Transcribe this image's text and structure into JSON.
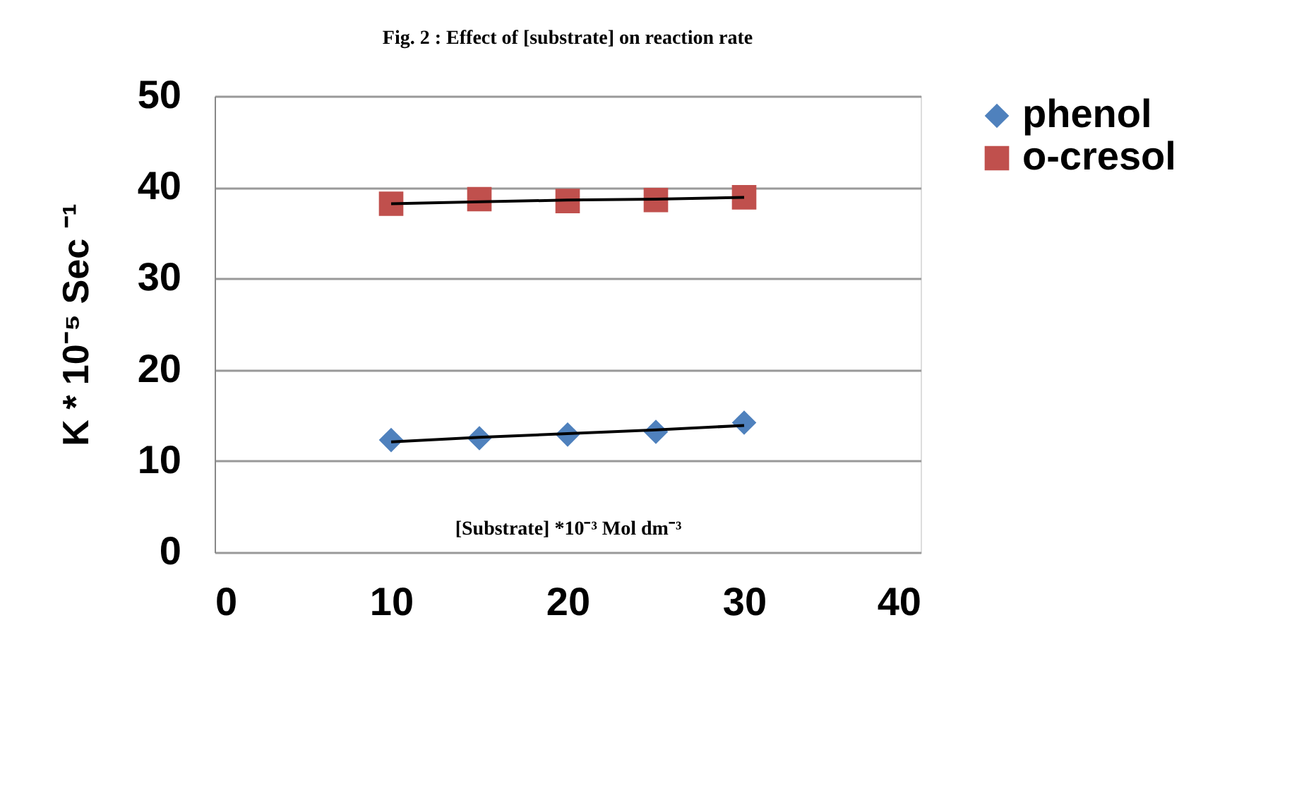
{
  "chart_data": {
    "type": "scatter",
    "title": "Fig. 2 : Effect of [substrate] on reaction rate",
    "xlabel": "[Substrate] *10⁻³ Mol dm⁻³",
    "ylabel": "K * 10⁻⁵ Sec ⁻¹",
    "x": [
      10,
      15,
      20,
      25,
      30
    ],
    "series": [
      {
        "name": "phenol",
        "color": "#4f81bd",
        "marker": "diamond",
        "values": [
          12.3,
          12.5,
          12.9,
          13.2,
          14.2
        ]
      },
      {
        "name": "o-cresol",
        "color": "#c0504d",
        "marker": "square",
        "values": [
          38.2,
          38.7,
          38.5,
          38.6,
          38.9
        ]
      },
      {
        "type": "line",
        "color": "#000000",
        "values": [
          12.1,
          12.6,
          13.0,
          13.4,
          13.9
        ]
      },
      {
        "type": "line",
        "color": "#000000",
        "values": [
          38.2,
          38.4,
          38.6,
          38.7,
          38.9
        ]
      }
    ],
    "xlim": [
      0,
      40
    ],
    "xticks": [
      0,
      10,
      20,
      30,
      40
    ],
    "ylim": [
      0,
      50
    ],
    "yticks": [
      0,
      10,
      20,
      30,
      40,
      50
    ],
    "grid": "y",
    "legend": "right"
  }
}
